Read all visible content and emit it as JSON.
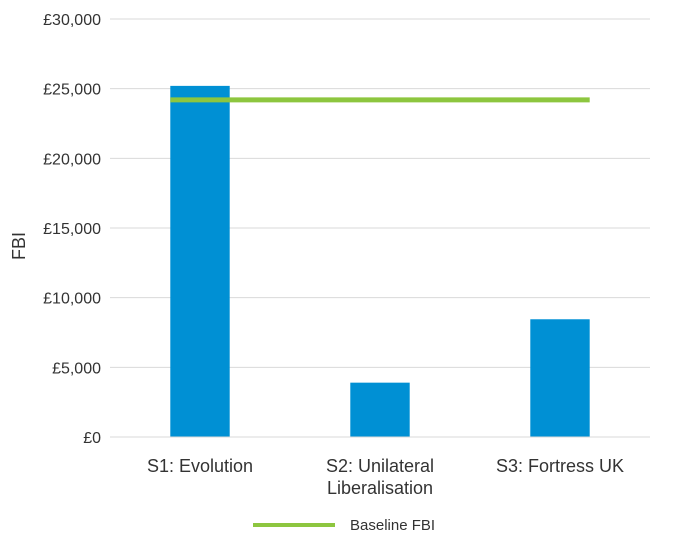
{
  "chart_data": {
    "type": "bar",
    "categories": [
      [
        "S1: Evolution"
      ],
      [
        "S2: Unilateral",
        "Liberalisation"
      ],
      [
        "S3: Fortress UK"
      ]
    ],
    "series": [
      {
        "values": [
          25200,
          3900,
          8450
        ],
        "color": "#0090d4"
      }
    ],
    "baseline": {
      "name": "Baseline FBI",
      "value": 24200,
      "color": "#8dc63f"
    },
    "ylabel": "FBI",
    "ylim": [
      0,
      30000
    ],
    "yticks": [
      0,
      5000,
      10000,
      15000,
      20000,
      25000,
      30000
    ],
    "ytick_labels": [
      "£0",
      "£5,000",
      "£10,000",
      "£15,000",
      "£20,000",
      "£25,000",
      "£30,000"
    ],
    "grid": true,
    "legend_position": "bottom"
  }
}
